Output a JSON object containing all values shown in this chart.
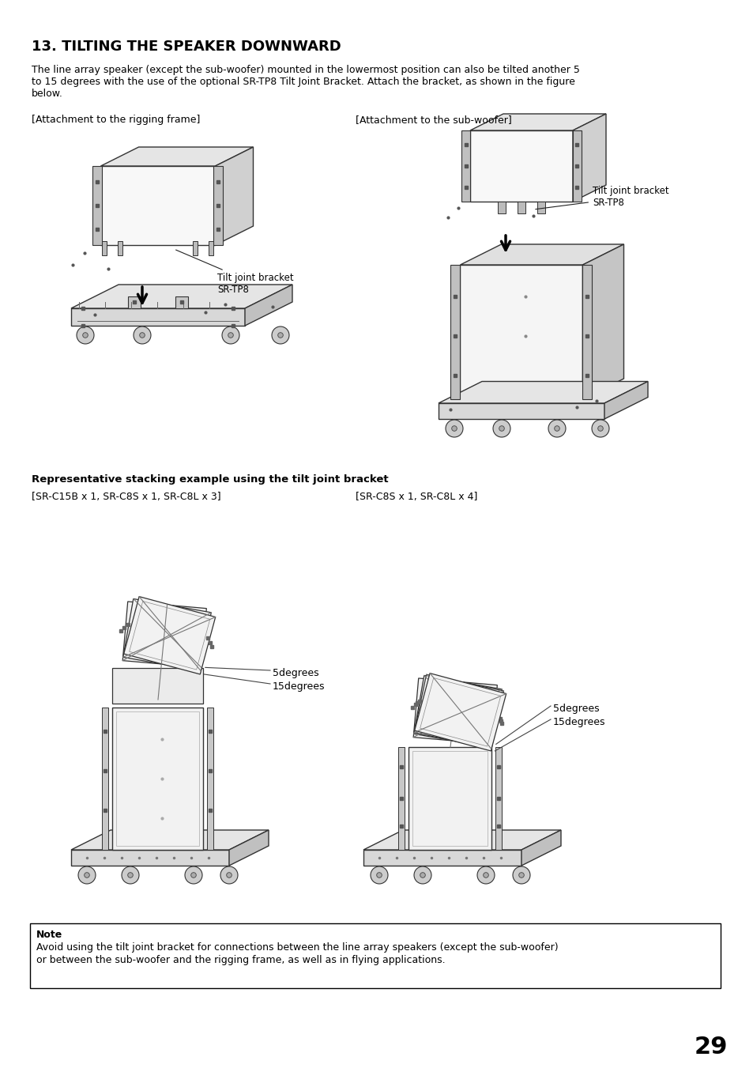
{
  "title": "13. TILTING THE SPEAKER DOWNWARD",
  "body_text_1": "The line array speaker (except the sub-woofer) mounted in the lowermost position can also be tilted another 5",
  "body_text_2": "to 15 degrees with the use of the optional SR-TP8 Tilt Joint Bracket. Attach the bracket, as shown in the figure",
  "body_text_3": "below.",
  "label_left_top": "[Attachment to the rigging frame]",
  "label_right_top": "[Attachment to the sub-woofer]",
  "annotation_tilt": "Tilt joint bracket\nSR-TP8",
  "section2_title": "Representative stacking example using the tilt joint bracket",
  "label_left_bottom": "[SR-C15B x 1, SR-C8S x 1, SR-C8L x 3]",
  "label_right_bottom": "[SR-C8S x 1, SR-C8L x 4]",
  "degrees_5": "5degrees",
  "degrees_15": "15degrees",
  "note_title": "Note",
  "note_text_1": "Avoid using the tilt joint bracket for connections between the line array speakers (except the sub-woofer)",
  "note_text_2": "or between the sub-woofer and the rigging frame, as well as in flying applications.",
  "page_number": "29",
  "bg_color": "#ffffff",
  "fg_color": "#000000",
  "gray_light": "#f0f0f0",
  "gray_mid": "#d8d8d8",
  "gray_dark": "#888888",
  "edge_color": "#333333"
}
